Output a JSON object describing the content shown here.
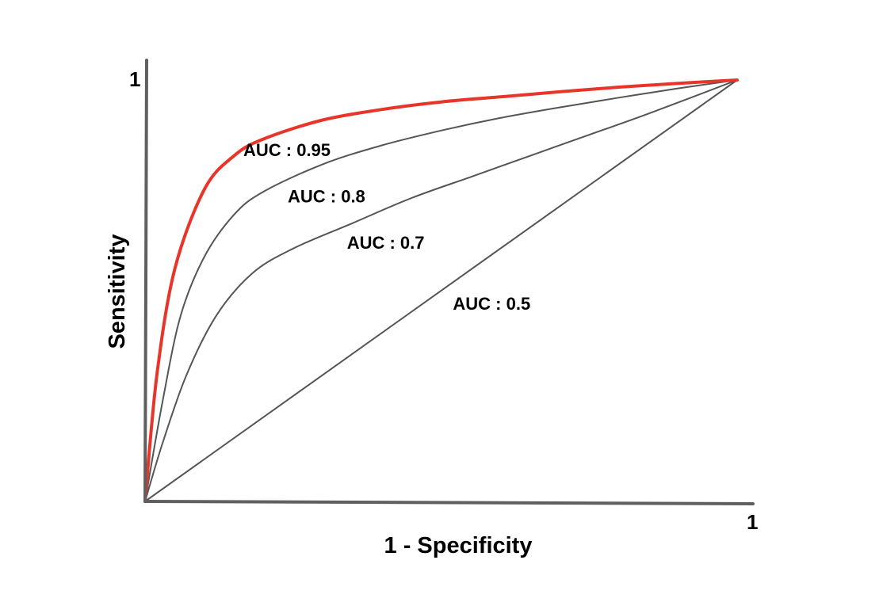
{
  "chart_data": {
    "type": "line",
    "title": "",
    "xlabel": "1 - Specificity",
    "ylabel": "Sensitivity",
    "xlim": [
      0,
      1
    ],
    "ylim": [
      0,
      1
    ],
    "x_ticks": [
      "1"
    ],
    "y_ticks": [
      "1"
    ],
    "grid": false,
    "legend": "none",
    "series": [
      {
        "label": "AUC : 0.95",
        "color": "#e8352a",
        "x": [
          0,
          0.02,
          0.05,
          0.1,
          0.15,
          0.2,
          0.3,
          0.4,
          0.5,
          0.6,
          0.7,
          0.8,
          0.9,
          1
        ],
        "y": [
          0,
          0.3,
          0.55,
          0.74,
          0.82,
          0.86,
          0.905,
          0.93,
          0.948,
          0.96,
          0.972,
          0.983,
          0.992,
          1
        ]
      },
      {
        "label": "AUC : 0.8",
        "color": "#555555",
        "x": [
          0,
          0.03,
          0.06,
          0.1,
          0.15,
          0.2,
          0.3,
          0.4,
          0.5,
          0.6,
          0.7,
          0.8,
          0.9,
          1
        ],
        "y": [
          0,
          0.24,
          0.44,
          0.58,
          0.68,
          0.735,
          0.8,
          0.845,
          0.88,
          0.91,
          0.935,
          0.958,
          0.98,
          1
        ]
      },
      {
        "label": "AUC : 0.7",
        "color": "#555555",
        "x": [
          0,
          0.03,
          0.07,
          0.12,
          0.18,
          0.25,
          0.35,
          0.45,
          0.55,
          0.65,
          0.75,
          0.85,
          1
        ],
        "y": [
          0,
          0.14,
          0.3,
          0.44,
          0.54,
          0.6,
          0.66,
          0.72,
          0.77,
          0.82,
          0.87,
          0.92,
          1
        ]
      },
      {
        "label": "AUC : 0.5",
        "color": "#555555",
        "x": [
          0,
          1
        ],
        "y": [
          0,
          1
        ]
      }
    ],
    "annotations": [
      {
        "text": "AUC : 0.95",
        "x": 0.166,
        "y": 0.82
      },
      {
        "text": "AUC : 0.8",
        "x": 0.241,
        "y": 0.71
      },
      {
        "text": "AUC : 0.7",
        "x": 0.341,
        "y": 0.6
      },
      {
        "text": "AUC : 0.5",
        "x": 0.52,
        "y": 0.455
      }
    ]
  }
}
